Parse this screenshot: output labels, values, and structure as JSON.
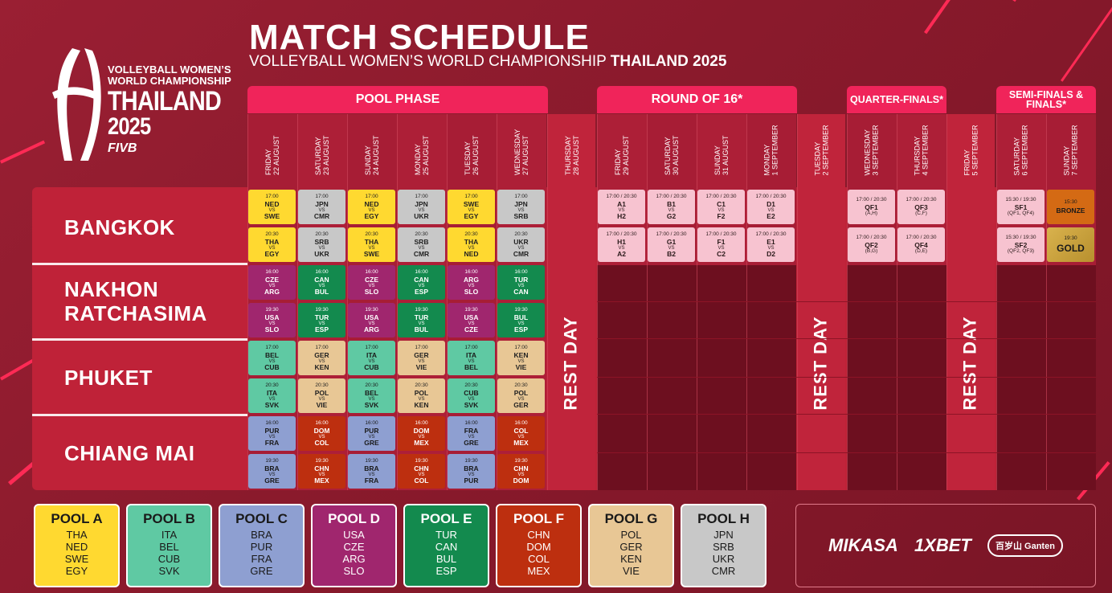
{
  "header": {
    "title": "MATCH SCHEDULE",
    "subtitle": "VOLLEYBALL WOMEN’S WORLD CHAMPIONSHIP",
    "subtitle_bold": "THAILAND 2025"
  },
  "logo": {
    "line1": "VOLLEYBALL WOMEN’S",
    "line2": "WORLD CHAMPIONSHIP",
    "line3": "THAILAND",
    "line4": "2025",
    "line5": "FIVB"
  },
  "phases": [
    "POOL PHASE",
    "ROUND OF 16*",
    "QUARTER-FINALS*",
    "SEMI-FINALS & FINALS*"
  ],
  "dates": [
    "FRIDAY\n22 AUGUST",
    "SATURDAY\n23 AUGUST",
    "SUNDAY\n24 AUGUST",
    "MONDAY\n25 AUGUST",
    "TUESDAY\n26 AUGUST",
    "WEDNESDAY\n27 AUGUST",
    "THURSDAY\n28 AUGUST",
    "FRIDAY\n29 AUGUST",
    "SATURDAY\n30 AUGUST",
    "SUNDAY\n31 AUGUST",
    "MONDAY\n1 SEPTEMBER",
    "TUESDAY\n2 SEPTEMBER",
    "WEDNESDAY\n3 SEPTEMBER",
    "THURSDAY\n4 SEPTEMBER",
    "FRIDAY\n5 SEPTEMBER",
    "SATURDAY\n6 SEPTEMBER",
    "SUNDAY\n7 SEPTEMBER"
  ],
  "rest_label": "REST DAY",
  "cities": [
    "BANGKOK",
    "NAKHON RATCHASIMA",
    "PHUKET",
    "CHIANG MAI"
  ],
  "vs": "VS",
  "pool_matches": [
    [
      "17:00",
      "NED",
      "SWE",
      "A"
    ],
    [
      "17:00",
      "JPN",
      "CMR",
      "H"
    ],
    [
      "17:00",
      "NED",
      "EGY",
      "A"
    ],
    [
      "17:00",
      "JPN",
      "UKR",
      "H"
    ],
    [
      "17:00",
      "SWE",
      "EGY",
      "A"
    ],
    [
      "17:00",
      "JPN",
      "SRB",
      "H"
    ],
    [
      "20:30",
      "THA",
      "EGY",
      "A"
    ],
    [
      "20:30",
      "SRB",
      "UKR",
      "H"
    ],
    [
      "20:30",
      "THA",
      "SWE",
      "A"
    ],
    [
      "20:30",
      "SRB",
      "CMR",
      "H"
    ],
    [
      "20:30",
      "THA",
      "NED",
      "A"
    ],
    [
      "20:30",
      "UKR",
      "CMR",
      "H"
    ],
    [
      "16:00",
      "CZE",
      "ARG",
      "D"
    ],
    [
      "16:00",
      "CAN",
      "BUL",
      "E"
    ],
    [
      "16:00",
      "CZE",
      "SLO",
      "D"
    ],
    [
      "16:00",
      "CAN",
      "ESP",
      "E"
    ],
    [
      "16:00",
      "ARG",
      "SLO",
      "D"
    ],
    [
      "16:00",
      "TUR",
      "CAN",
      "E"
    ],
    [
      "19:30",
      "USA",
      "SLO",
      "D"
    ],
    [
      "19:30",
      "TUR",
      "ESP",
      "E"
    ],
    [
      "19:30",
      "USA",
      "ARG",
      "D"
    ],
    [
      "19:30",
      "TUR",
      "BUL",
      "E"
    ],
    [
      "19:30",
      "USA",
      "CZE",
      "D"
    ],
    [
      "19:30",
      "BUL",
      "ESP",
      "E"
    ],
    [
      "17:00",
      "BEL",
      "CUB",
      "B"
    ],
    [
      "17:00",
      "GER",
      "KEN",
      "G"
    ],
    [
      "17:00",
      "ITA",
      "CUB",
      "B"
    ],
    [
      "17:00",
      "GER",
      "VIE",
      "G"
    ],
    [
      "17:00",
      "ITA",
      "BEL",
      "B"
    ],
    [
      "17:00",
      "KEN",
      "VIE",
      "G"
    ],
    [
      "20:30",
      "ITA",
      "SVK",
      "B"
    ],
    [
      "20:30",
      "POL",
      "VIE",
      "G"
    ],
    [
      "20:30",
      "BEL",
      "SVK",
      "B"
    ],
    [
      "20:30",
      "POL",
      "KEN",
      "G"
    ],
    [
      "20:30",
      "CUB",
      "SVK",
      "B"
    ],
    [
      "20:30",
      "POL",
      "GER",
      "G"
    ],
    [
      "16:00",
      "PUR",
      "FRA",
      "C"
    ],
    [
      "16:00",
      "DOM",
      "COL",
      "F"
    ],
    [
      "16:00",
      "PUR",
      "GRE",
      "C"
    ],
    [
      "16:00",
      "DOM",
      "MEX",
      "F"
    ],
    [
      "16:00",
      "FRA",
      "GRE",
      "C"
    ],
    [
      "16:00",
      "COL",
      "MEX",
      "F"
    ],
    [
      "19:30",
      "BRA",
      "GRE",
      "C"
    ],
    [
      "19:30",
      "CHN",
      "MEX",
      "F"
    ],
    [
      "19:30",
      "BRA",
      "FRA",
      "C"
    ],
    [
      "19:30",
      "CHN",
      "COL",
      "F"
    ],
    [
      "19:30",
      "BRA",
      "PUR",
      "C"
    ],
    [
      "19:30",
      "CHN",
      "DOM",
      "F"
    ]
  ],
  "r16_matches": [
    [
      "17:00 / 20:30",
      "A1",
      "H2"
    ],
    [
      "17:00 / 20:30",
      "B1",
      "G2"
    ],
    [
      "17:00 / 20:30",
      "C1",
      "F2"
    ],
    [
      "17:00 / 20:30",
      "D1",
      "E2"
    ],
    [
      "17:00 / 20:30",
      "H1",
      "A2"
    ],
    [
      "17:00 / 20:30",
      "G1",
      "B2"
    ],
    [
      "17:00 / 20:30",
      "F1",
      "C2"
    ],
    [
      "17:00 / 20:30",
      "E1",
      "D2"
    ]
  ],
  "qf_matches": [
    [
      "17:00 / 20:30",
      "QF1",
      "(A,H)"
    ],
    [
      "17:00 / 20:30",
      "QF3",
      "(C,F)"
    ],
    [
      "17:00 / 20:30",
      "QF2",
      "(B,G)"
    ],
    [
      "17:00 / 20:30",
      "QF4",
      "(D,E)"
    ]
  ],
  "sf_matches": [
    [
      "15:30 / 19:30",
      "SF1",
      "(QF1, QF4)"
    ],
    [
      "15:30 / 19:30",
      "SF2",
      "(QF2, QF3)"
    ]
  ],
  "finals": [
    [
      "15:30",
      "BRONZE"
    ],
    [
      "19:30",
      "GOLD"
    ]
  ],
  "pools": [
    {
      "name": "POOL A",
      "teams": [
        "THA",
        "NED",
        "SWE",
        "EGY"
      ],
      "color": "#ffd930"
    },
    {
      "name": "POOL B",
      "teams": [
        "ITA",
        "BEL",
        "CUB",
        "SVK"
      ],
      "color": "#5fc9a3"
    },
    {
      "name": "POOL C",
      "teams": [
        "BRA",
        "PUR",
        "FRA",
        "GRE"
      ],
      "color": "#8e9fd1"
    },
    {
      "name": "POOL D",
      "teams": [
        "USA",
        "CZE",
        "ARG",
        "SLO"
      ],
      "color": "#a0266e"
    },
    {
      "name": "POOL E",
      "teams": [
        "TUR",
        "CAN",
        "BUL",
        "ESP"
      ],
      "color": "#138a4e"
    },
    {
      "name": "POOL F",
      "teams": [
        "CHN",
        "DOM",
        "COL",
        "MEX"
      ],
      "color": "#bd2f0f"
    },
    {
      "name": "POOL G",
      "teams": [
        "POL",
        "GER",
        "KEN",
        "VIE"
      ],
      "color": "#e8c795"
    },
    {
      "name": "POOL H",
      "teams": [
        "JPN",
        "SRB",
        "UKR",
        "CMR"
      ],
      "color": "#c8c8c8"
    }
  ],
  "sponsors": [
    "MIKASA",
    "1XBET",
    "百岁山 Ganten"
  ]
}
